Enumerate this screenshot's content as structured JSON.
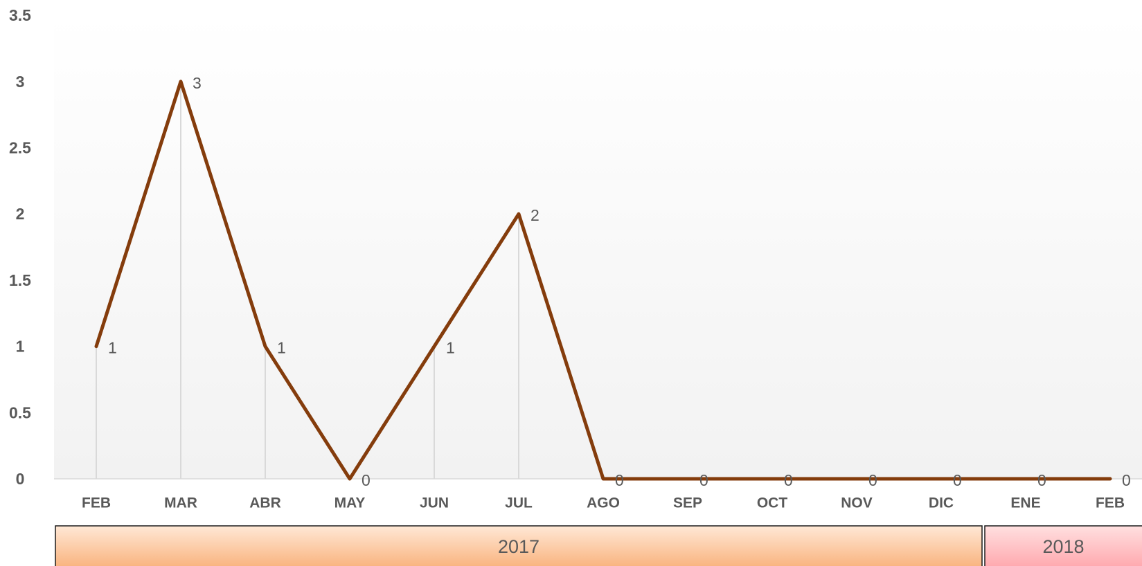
{
  "chart_data": {
    "type": "line",
    "categories": [
      "FEB",
      "MAR",
      "ABR",
      "MAY",
      "JUN",
      "JUL",
      "AGO",
      "SEP",
      "OCT",
      "NOV",
      "DIC",
      "ENE",
      "FEB"
    ],
    "series": [
      {
        "values": [
          1,
          3,
          1,
          0,
          1,
          2,
          0,
          0,
          0,
          0,
          0,
          0,
          0
        ]
      }
    ],
    "data_labels": [
      "1",
      "3",
      "1",
      "0",
      "1",
      "2",
      "0",
      "0",
      "0",
      "0",
      "0",
      "0",
      "0"
    ],
    "yticks": [
      "0",
      "0.5",
      "1",
      "1.5",
      "2",
      "2.5",
      "3",
      "3.5"
    ],
    "ylim": [
      0,
      3.5
    ],
    "groups": [
      {
        "label": "2017",
        "from_index": 0,
        "to_index": 10
      },
      {
        "label": "2018",
        "from_index": 11,
        "to_index": 12
      }
    ],
    "title": "",
    "xlabel": "",
    "ylabel": "",
    "grid": "vertical drop lines",
    "legend": "none",
    "colors": {
      "line": "#843c0c",
      "drop_line": "#d9d9d9",
      "axis": "#d9d9d9",
      "plot_bg_top": "#ffffff",
      "plot_bg_bottom": "#f2f2f2",
      "group_2017_top": "#ffe8d6",
      "group_2017_bottom": "#f9b37e",
      "group_2018_top": "#ffe0e0",
      "group_2018_bottom": "#ffa8ae"
    }
  }
}
